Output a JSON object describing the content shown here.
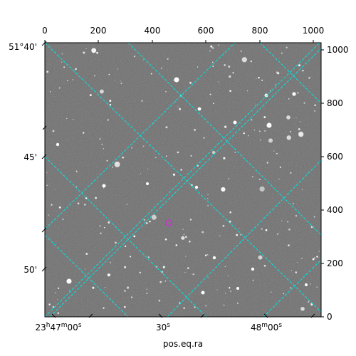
{
  "figure": {
    "xlabel": "pos.eq.ra",
    "top_ticks": [
      "0",
      "200",
      "400",
      "600",
      "800",
      "1000"
    ],
    "right_ticks": [
      "0",
      "200",
      "400",
      "600",
      "800",
      "1000"
    ],
    "left_ticks": [
      "51°40'",
      "45'",
      "50'"
    ],
    "bottom_ticks": {
      "t1_main": "23",
      "t1_h": "h",
      "t1_mid": "47",
      "t1_m": "m",
      "t1_end": "00",
      "t1_s": "s",
      "t2_main": "30",
      "t2_s": "s",
      "t3_main": "48",
      "t3_m": "m",
      "t3_end": "00",
      "t3_s": "s"
    },
    "colors": {
      "grid": "#00e5e5",
      "marker": "#cc33cc",
      "sky_background": "#6e6e6e"
    }
  }
}
